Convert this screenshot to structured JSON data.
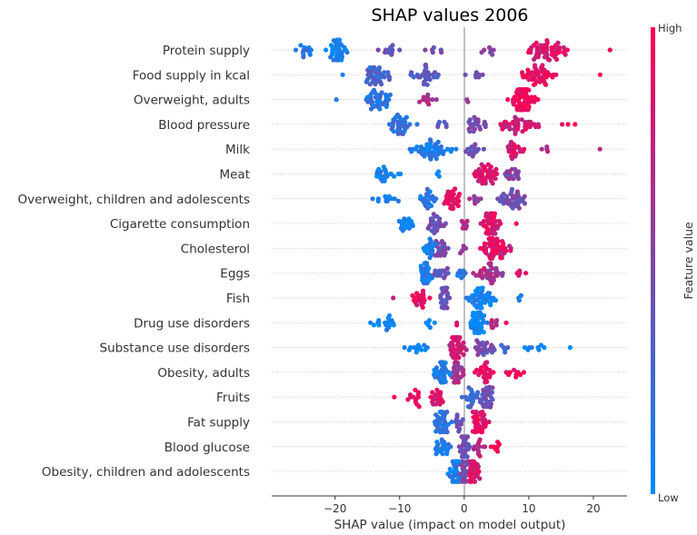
{
  "chart_data": {
    "type": "scatter",
    "subtype": "beeswarm",
    "title": "SHAP values 2006",
    "xlabel": "SHAP value (impact on model output)",
    "xlim": [
      -29.8,
      25.2
    ],
    "xticks": [
      -20,
      -10,
      0,
      10,
      20
    ],
    "xtick_labels": [
      "−20",
      "−10",
      "0",
      "10",
      "20"
    ],
    "colorbar": {
      "label": "Feature value",
      "high_label": "High",
      "low_label": "Low",
      "low_color": "#008bfb",
      "high_color": "#ff0052"
    },
    "cluster_format": "[shap_center, shap_halfwidth, count, feature_value_0_to_1]",
    "features": [
      {
        "name": "Protein supply",
        "clusters": [
          [
            -25,
            2.5,
            12,
            0.15
          ],
          [
            -19.5,
            2.5,
            40,
            0.05
          ],
          [
            -12,
            3,
            12,
            0.4
          ],
          [
            -4,
            3,
            6,
            0.45
          ],
          [
            3.5,
            2.5,
            7,
            0.5
          ],
          [
            13,
            4.5,
            55,
            0.85
          ],
          [
            22.6,
            0.2,
            1,
            0.9
          ]
        ]
      },
      {
        "name": "Food supply in kcal",
        "clusters": [
          [
            -18.8,
            0.2,
            1,
            0.1
          ],
          [
            -13.5,
            3,
            38,
            0.25
          ],
          [
            -6,
            3,
            28,
            0.35
          ],
          [
            2,
            2.5,
            7,
            0.5
          ],
          [
            11.5,
            3.5,
            45,
            0.9
          ],
          [
            21,
            0.2,
            1,
            0.9
          ]
        ]
      },
      {
        "name": "Overweight, adults",
        "clusters": [
          [
            -19.8,
            0.2,
            1,
            0.05
          ],
          [
            -13.5,
            3,
            38,
            0.15
          ],
          [
            -6,
            2,
            12,
            0.65
          ],
          [
            0.5,
            0.4,
            2,
            0.55
          ],
          [
            9,
            3,
            75,
            0.95
          ]
        ]
      },
      {
        "name": "Blood pressure",
        "clusters": [
          [
            -10,
            3.2,
            35,
            0.2
          ],
          [
            -3.5,
            1.5,
            6,
            0.3
          ],
          [
            2,
            2.5,
            22,
            0.5
          ],
          [
            8.5,
            4,
            42,
            0.8
          ],
          [
            16,
            2,
            3,
            0.95
          ]
        ]
      },
      {
        "name": "Milk",
        "clusters": [
          [
            -5,
            4.5,
            50,
            0.1
          ],
          [
            1.5,
            2,
            15,
            0.45
          ],
          [
            7.5,
            2.5,
            22,
            0.82
          ],
          [
            12.5,
            1.5,
            4,
            0.7
          ],
          [
            21,
            0.2,
            1,
            0.7
          ]
        ]
      },
      {
        "name": "Meat",
        "clusters": [
          [
            -12,
            3.5,
            22,
            0.05
          ],
          [
            -4,
            0.8,
            3,
            0.05
          ],
          [
            3.5,
            2.5,
            40,
            0.85
          ],
          [
            7.5,
            2,
            18,
            0.5
          ]
        ]
      },
      {
        "name": "Overweight, children and adolescents",
        "clusters": [
          [
            -12,
            3.5,
            12,
            0.05
          ],
          [
            -5.5,
            2,
            22,
            0.15
          ],
          [
            -2,
            1.8,
            30,
            0.9
          ],
          [
            1.5,
            1.5,
            8,
            0.6
          ],
          [
            8,
            3.5,
            38,
            0.45
          ]
        ]
      },
      {
        "name": "Cigarette consumption",
        "clusters": [
          [
            -9,
            1.5,
            18,
            0.05
          ],
          [
            -4.5,
            2.5,
            25,
            0.4
          ],
          [
            0,
            1.2,
            8,
            0.7
          ],
          [
            4,
            2,
            42,
            0.85
          ],
          [
            8,
            0.3,
            1,
            0.9
          ]
        ]
      },
      {
        "name": "Cholesterol",
        "clusters": [
          [
            -5.5,
            2,
            18,
            0.1
          ],
          [
            -3.5,
            2,
            22,
            0.45
          ],
          [
            0,
            1.2,
            5,
            0.5
          ],
          [
            4.5,
            2.5,
            45,
            0.9
          ],
          [
            6.5,
            1.5,
            8,
            0.75
          ]
        ]
      },
      {
        "name": "Eggs",
        "clusters": [
          [
            -6,
            2,
            30,
            0.1
          ],
          [
            -3.5,
            2,
            15,
            0.4
          ],
          [
            -0.5,
            1.2,
            8,
            0.15
          ],
          [
            4,
            3,
            35,
            0.65
          ],
          [
            8.5,
            1.5,
            5,
            0.9
          ]
        ]
      },
      {
        "name": "Fish",
        "clusters": [
          [
            -11,
            0.2,
            1,
            0.9
          ],
          [
            -7,
            2.5,
            22,
            0.9
          ],
          [
            -3,
            1.5,
            25,
            0.45
          ],
          [
            3,
            3.5,
            45,
            0.05
          ],
          [
            8.5,
            0.8,
            3,
            0.05
          ]
        ]
      },
      {
        "name": "Drug use disorders",
        "clusters": [
          [
            -12,
            3.5,
            18,
            0.05
          ],
          [
            -5,
            1.5,
            6,
            0.05
          ],
          [
            -1.2,
            0.3,
            2,
            0.9
          ],
          [
            2,
            1.8,
            45,
            0.05
          ],
          [
            4.5,
            1.2,
            8,
            0.7
          ],
          [
            6.5,
            0.3,
            1,
            0.95
          ]
        ]
      },
      {
        "name": "Substance use disorders",
        "clusters": [
          [
            -7,
            3,
            14,
            0.05
          ],
          [
            -1,
            2,
            55,
            0.8
          ],
          [
            3,
            2.5,
            25,
            0.45
          ],
          [
            6.5,
            1.5,
            5,
            0.25
          ],
          [
            11,
            3.5,
            8,
            0.05
          ],
          [
            16.5,
            0.2,
            1,
            0.05
          ]
        ]
      },
      {
        "name": "Obesity, adults",
        "clusters": [
          [
            -3.5,
            1.8,
            35,
            0.1
          ],
          [
            -1,
            1.5,
            28,
            0.6
          ],
          [
            3,
            2,
            25,
            0.9
          ],
          [
            8,
            3,
            10,
            0.95
          ]
        ]
      },
      {
        "name": "Fruits",
        "clusters": [
          [
            -10.8,
            0.2,
            1,
            0.95
          ],
          [
            -8,
            2,
            12,
            0.95
          ],
          [
            -4,
            2,
            20,
            0.85
          ],
          [
            1,
            1.5,
            20,
            0.25
          ],
          [
            3.5,
            1.5,
            30,
            0.4
          ]
        ]
      },
      {
        "name": "Fat supply",
        "clusters": [
          [
            -3.5,
            1.8,
            38,
            0.15
          ],
          [
            -0.8,
            1.2,
            12,
            0.4
          ],
          [
            2.5,
            1.8,
            38,
            0.9
          ]
        ]
      },
      {
        "name": "Blood glucose",
        "clusters": [
          [
            -3.5,
            1.8,
            22,
            0.1
          ],
          [
            0,
            1,
            40,
            0.45
          ],
          [
            2.5,
            1.5,
            12,
            0.7
          ],
          [
            5,
            1.5,
            8,
            0.95
          ]
        ]
      },
      {
        "name": "Obesity, children and adolescents",
        "clusters": [
          [
            -1.5,
            1.4,
            40,
            0.1
          ],
          [
            0,
            0.8,
            22,
            0.45
          ],
          [
            1.5,
            1.2,
            35,
            0.85
          ]
        ]
      }
    ]
  }
}
